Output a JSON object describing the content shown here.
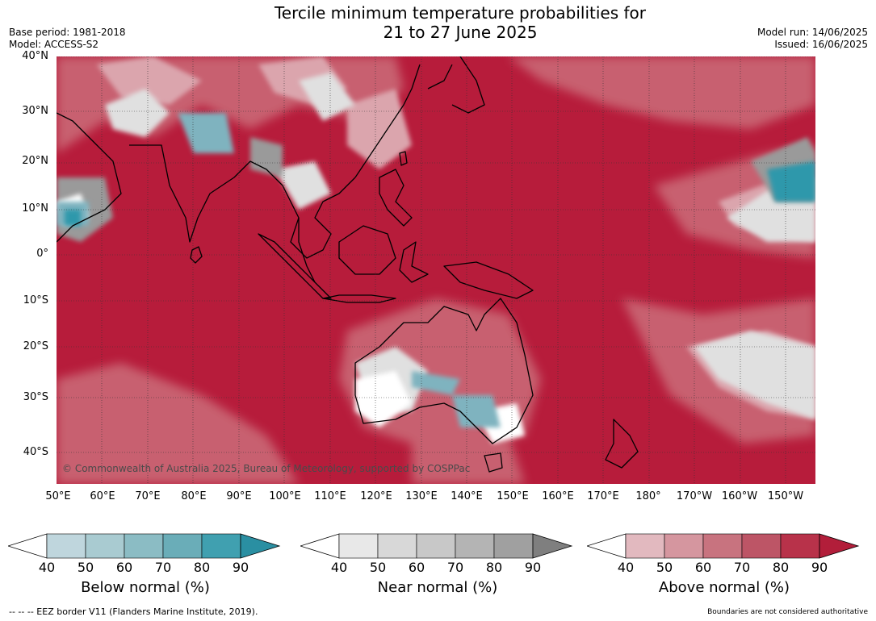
{
  "header": {
    "title_line1": "Tercile minimum temperature probabilities for",
    "title_line2": "21 to 27 June 2025",
    "base_period": "Base period: 1981-2018",
    "model": "Model: ACCESS-S2",
    "model_run": "Model run: 14/06/2025",
    "issued": "Issued: 16/06/2025"
  },
  "map": {
    "lat_labels": [
      "40°N",
      "30°N",
      "20°N",
      "10°N",
      "0°",
      "10°S",
      "20°S",
      "30°S",
      "40°S"
    ],
    "lon_labels": [
      "50°E",
      "60°E",
      "70°E",
      "80°E",
      "90°E",
      "100°E",
      "110°E",
      "120°E",
      "130°E",
      "140°E",
      "150°E",
      "160°E",
      "170°E",
      "180°",
      "170°W",
      "160°W",
      "150°W"
    ],
    "copyright": "© Commonwealth of Australia 2025, Bureau of Meteorology, supported by COSPPac",
    "colors": {
      "above": "#b71c3b",
      "near": "#cfcfcf",
      "below": "#3aa0b4",
      "land_border": "#000000"
    }
  },
  "legends": [
    {
      "title": "Below normal (%)",
      "ticks": [
        "40",
        "50",
        "60",
        "70",
        "80",
        "90"
      ],
      "colors": [
        "#ffffff",
        "#bfd6dd",
        "#a9cbd1",
        "#8bbcc4",
        "#6aadb8",
        "#40a0b0",
        "#2a8fa2"
      ]
    },
    {
      "title": "Near normal (%)",
      "ticks": [
        "40",
        "50",
        "60",
        "70",
        "80",
        "90"
      ],
      "colors": [
        "#ffffff",
        "#e8e8e8",
        "#d8d8d8",
        "#c8c8c8",
        "#b4b4b4",
        "#a0a0a0",
        "#7f7f7f"
      ]
    },
    {
      "title": "Above normal (%)",
      "ticks": [
        "40",
        "50",
        "60",
        "70",
        "80",
        "90"
      ],
      "colors": [
        "#ffffff",
        "#e2b9bf",
        "#d5969f",
        "#c8737f",
        "#bd5566",
        "#b8324a",
        "#b21e3a"
      ]
    }
  ],
  "footer": {
    "eez": "--  --  -- EEZ border V11 (Flanders Marine Institute, 2019).",
    "disclaimer": "Boundaries are not considered authoritative"
  }
}
